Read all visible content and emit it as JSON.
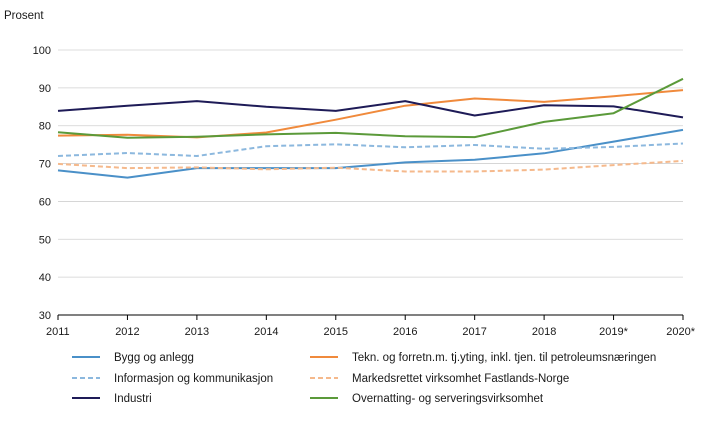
{
  "chart_data": {
    "type": "line",
    "ylabel": "Prosent",
    "ylim": [
      30,
      100
    ],
    "yticks": [
      30,
      40,
      50,
      60,
      70,
      80,
      90,
      100
    ],
    "grid": "horizontal",
    "x": [
      "2011",
      "2012",
      "2013",
      "2014",
      "2015",
      "2016",
      "2017",
      "2018",
      "2019*",
      "2020*"
    ],
    "legend_position": "bottom",
    "series": [
      {
        "name": "Bygg og anlegg",
        "color": "#4a90c8",
        "dash": "solid",
        "values": [
          68.2,
          66.3,
          68.8,
          68.8,
          68.8,
          70.3,
          71.0,
          72.7,
          75.8,
          78.9
        ]
      },
      {
        "name": "Tekn. og forretn.m. tj.yting, inkl. tjen. til petroleumsnæringen",
        "color": "#f08a3c",
        "dash": "solid",
        "values": [
          77.4,
          77.6,
          76.9,
          78.2,
          81.6,
          85.3,
          87.2,
          86.3,
          87.8,
          89.4
        ]
      },
      {
        "name": "Informasjon og kommunikasjon",
        "color": "#8cb8de",
        "dash": "dashed",
        "values": [
          72.0,
          72.8,
          72.0,
          74.6,
          75.1,
          74.3,
          74.9,
          73.9,
          74.4,
          75.3
        ]
      },
      {
        "name": "Markedsrettet virksomhet Fastlands-Norge",
        "color": "#f5b98c",
        "dash": "dashed",
        "values": [
          69.9,
          68.8,
          69.0,
          68.5,
          68.9,
          67.9,
          67.9,
          68.4,
          69.6,
          70.7
        ]
      },
      {
        "name": "Industri",
        "color": "#1e1b57",
        "dash": "solid",
        "values": [
          83.9,
          85.3,
          86.5,
          85.0,
          83.9,
          86.5,
          82.7,
          85.4,
          85.1,
          82.2
        ]
      },
      {
        "name": "Overnatting- og serveringsvirksomhet",
        "color": "#5b9a3a",
        "dash": "solid",
        "values": [
          78.3,
          76.8,
          77.1,
          77.7,
          78.1,
          77.2,
          77.0,
          81.0,
          83.3,
          92.4
        ]
      }
    ]
  }
}
